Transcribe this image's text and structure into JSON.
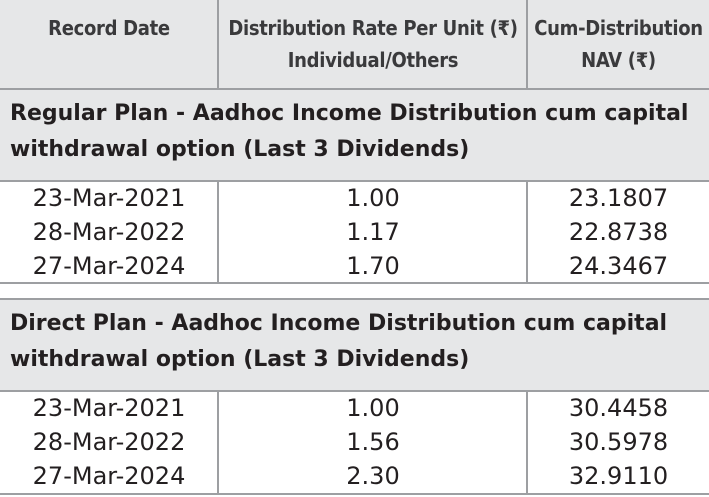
{
  "header": {
    "col1": "Record Date",
    "col2_line1": "Distribution Rate Per Unit  (₹)",
    "col2_line2": "Individual/Others",
    "col3_line1": "Cum-Distribution",
    "col3_line2": "NAV (₹)"
  },
  "sections": [
    {
      "title_line1": "Regular Plan - Aadhoc Income Distribution cum capital",
      "title_line2": "withdrawal option (Last 3 Dividends)",
      "rows": [
        {
          "date": "23-Mar-2021",
          "rate": "1.00",
          "nav": "23.1807"
        },
        {
          "date": "28-Mar-2022",
          "rate": "1.17",
          "nav": "22.8738"
        },
        {
          "date": "27-Mar-2024",
          "rate": "1.70",
          "nav": "24.3467"
        }
      ]
    },
    {
      "title_line1": "Direct Plan - Aadhoc Income Distribution cum capital",
      "title_line2": "withdrawal option (Last 3 Dividends)",
      "rows": [
        {
          "date": "23-Mar-2021",
          "rate": "1.00",
          "nav": "30.4458"
        },
        {
          "date": "28-Mar-2022",
          "rate": "1.56",
          "nav": "30.5978"
        },
        {
          "date": "27-Mar-2024",
          "rate": "2.30",
          "nav": "32.9110"
        }
      ]
    }
  ]
}
